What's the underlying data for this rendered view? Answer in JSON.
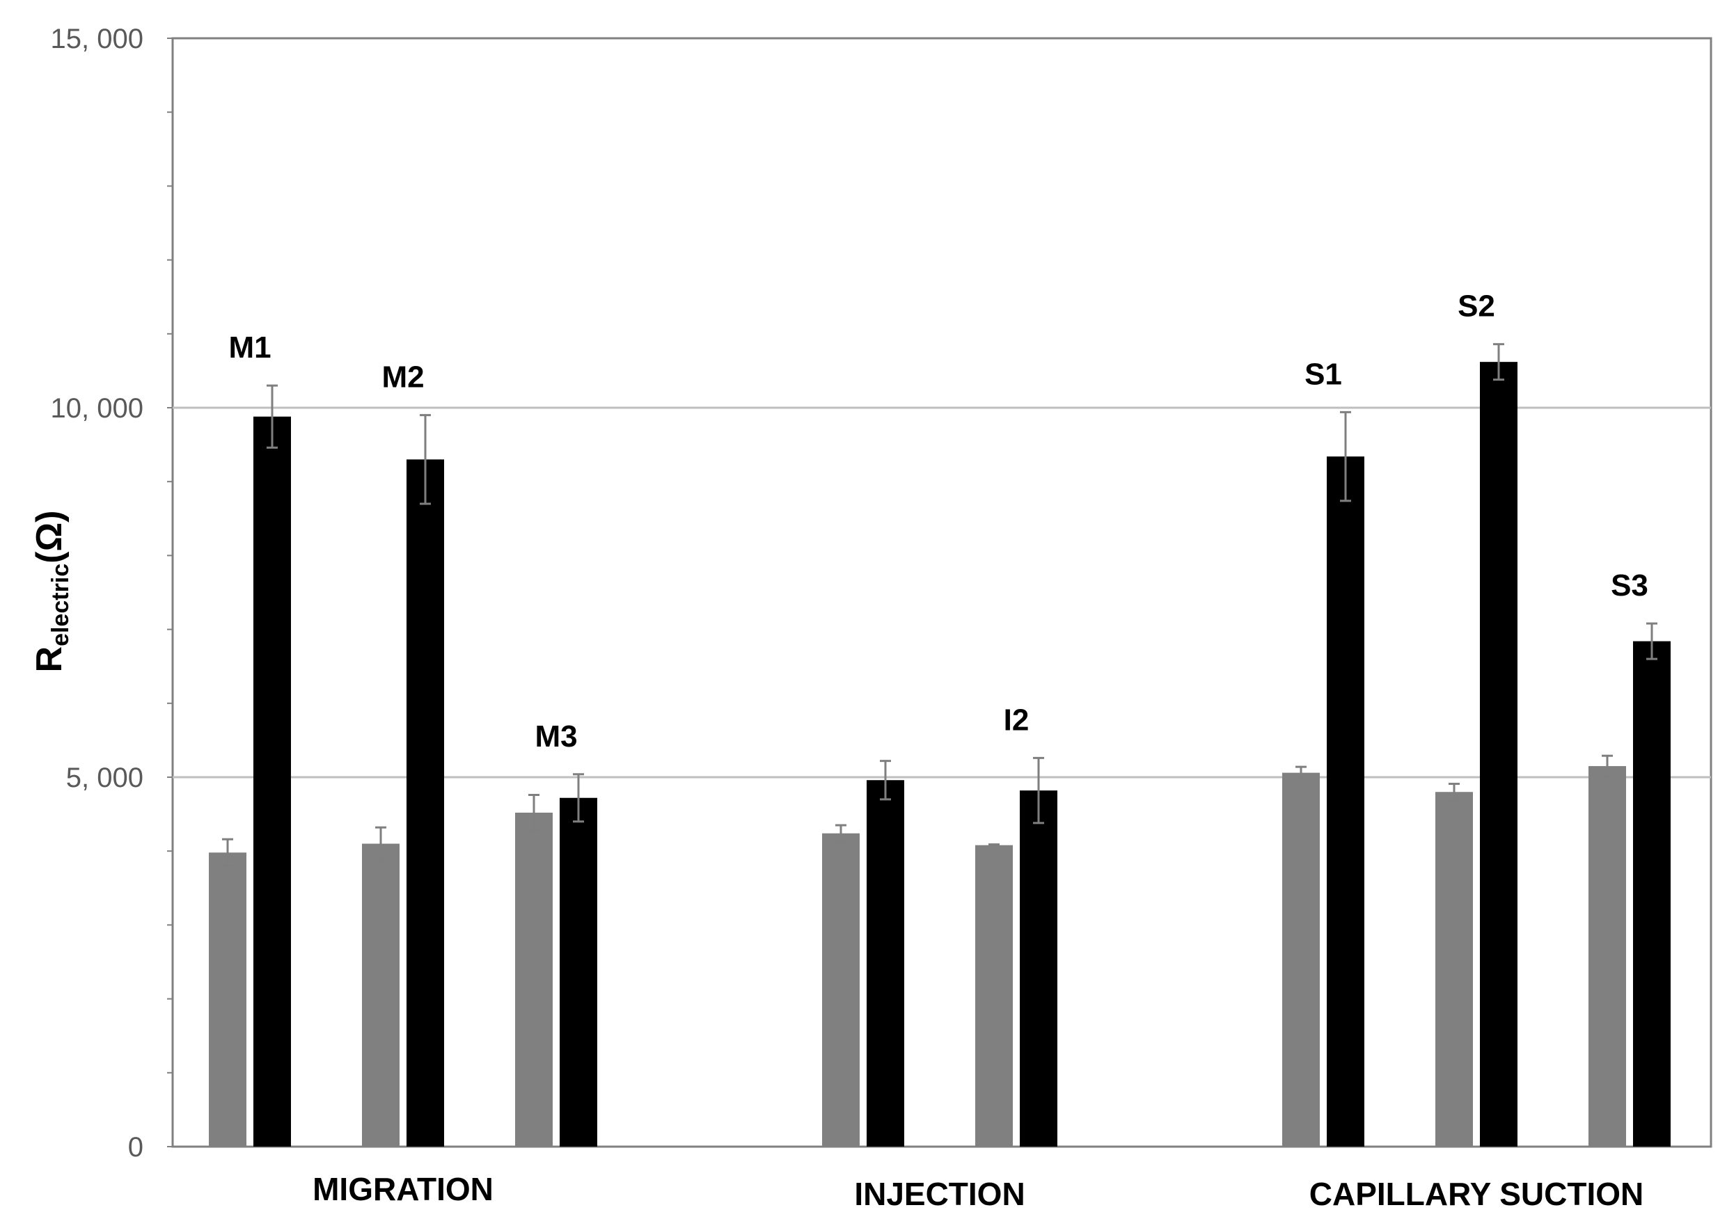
{
  "chart_data": {
    "type": "bar",
    "ylabel": {
      "main": "R",
      "subscript": "electric",
      "unit": "(Ω)"
    },
    "ylim": [
      0,
      15000
    ],
    "yticks": [
      {
        "value": 0,
        "label": "0"
      },
      {
        "value": 5000,
        "label": "5, 000"
      },
      {
        "value": 10000,
        "label": "10, 000"
      },
      {
        "value": 15000,
        "label": "15, 000"
      }
    ],
    "minor_tick_step": 1000,
    "gridlines": [
      5000,
      10000
    ],
    "groups": [
      {
        "label": "MIGRATION",
        "pairs": [
          {
            "label": "M1",
            "gray": 3980,
            "gray_err": 180,
            "black": 9880,
            "black_err": 420
          },
          {
            "label": "M2",
            "gray": 4100,
            "gray_err": 220,
            "black": 9300,
            "black_err": 600
          },
          {
            "label": "M3",
            "gray": 4520,
            "gray_err": 240,
            "black": 4720,
            "black_err": 320
          }
        ]
      },
      {
        "label": "INJECTION",
        "pairs": [
          {
            "label": "",
            "gray": 4240,
            "gray_err": 110,
            "black": 4960,
            "black_err": 260
          },
          {
            "label": "I2",
            "gray": 4080,
            "gray_err": 10,
            "black": 4820,
            "black_err": 440
          }
        ]
      },
      {
        "label": "CAPILLARY SUCTION",
        "pairs": [
          {
            "label": "S1",
            "gray": 5060,
            "gray_err": 80,
            "black": 9340,
            "black_err": 600
          },
          {
            "label": "S2",
            "gray": 4800,
            "gray_err": 110,
            "black": 10620,
            "black_err": 240
          },
          {
            "label": "S3",
            "gray": 5150,
            "gray_err": 140,
            "black": 6840,
            "black_err": 240
          }
        ]
      }
    ],
    "colors": {
      "gray": "#808080",
      "black": "#000000",
      "grid": "#bfbfbf",
      "axis": "#808080",
      "error": "#7f7f7f"
    }
  }
}
